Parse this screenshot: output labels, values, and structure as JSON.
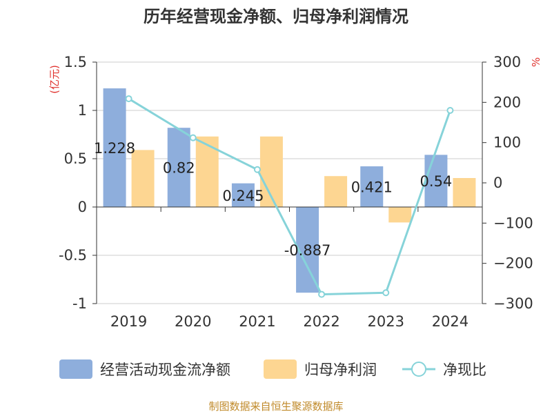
{
  "chart_data": {
    "type": "bar",
    "title": "历年经营现金净额、归母净利润情况",
    "categories": [
      "2019",
      "2020",
      "2021",
      "2022",
      "2023",
      "2024"
    ],
    "series": [
      {
        "name": "经营活动现金流净额",
        "kind": "bar",
        "axis": "left",
        "color": "#8eaedc",
        "values": [
          1.228,
          0.82,
          0.245,
          -0.887,
          0.421,
          0.54
        ],
        "labels": [
          "1.228",
          "0.82",
          "0.245",
          "-0.887",
          "0.421",
          "0.54"
        ]
      },
      {
        "name": "归母净利润",
        "kind": "bar",
        "axis": "left",
        "color": "#fdd692",
        "values": [
          0.59,
          0.73,
          0.73,
          0.32,
          -0.16,
          0.3
        ]
      },
      {
        "name": "净现比",
        "kind": "line",
        "axis": "right",
        "color": "#86d3d9",
        "values": [
          209,
          112,
          33,
          -277,
          -273,
          180
        ]
      }
    ],
    "left_axis": {
      "unit": "(亿元)",
      "ylim": [
        -1,
        1.5
      ],
      "ticks": [
        1.5,
        1,
        0.5,
        0,
        -0.5,
        -1
      ],
      "tick_labels": [
        "1.5",
        "1",
        "0.5",
        "0",
        "-0.5",
        "-1"
      ]
    },
    "right_axis": {
      "unit": "%",
      "ylim": [
        -300,
        300
      ],
      "ticks": [
        300,
        200,
        100,
        0,
        -100,
        -200,
        -300
      ],
      "tick_labels": [
        "300",
        "200",
        "100",
        "0",
        "−100",
        "−200",
        "−300"
      ]
    },
    "grid": true,
    "legend_position": "bottom",
    "source": "制图数据来自恒生聚源数据库"
  }
}
